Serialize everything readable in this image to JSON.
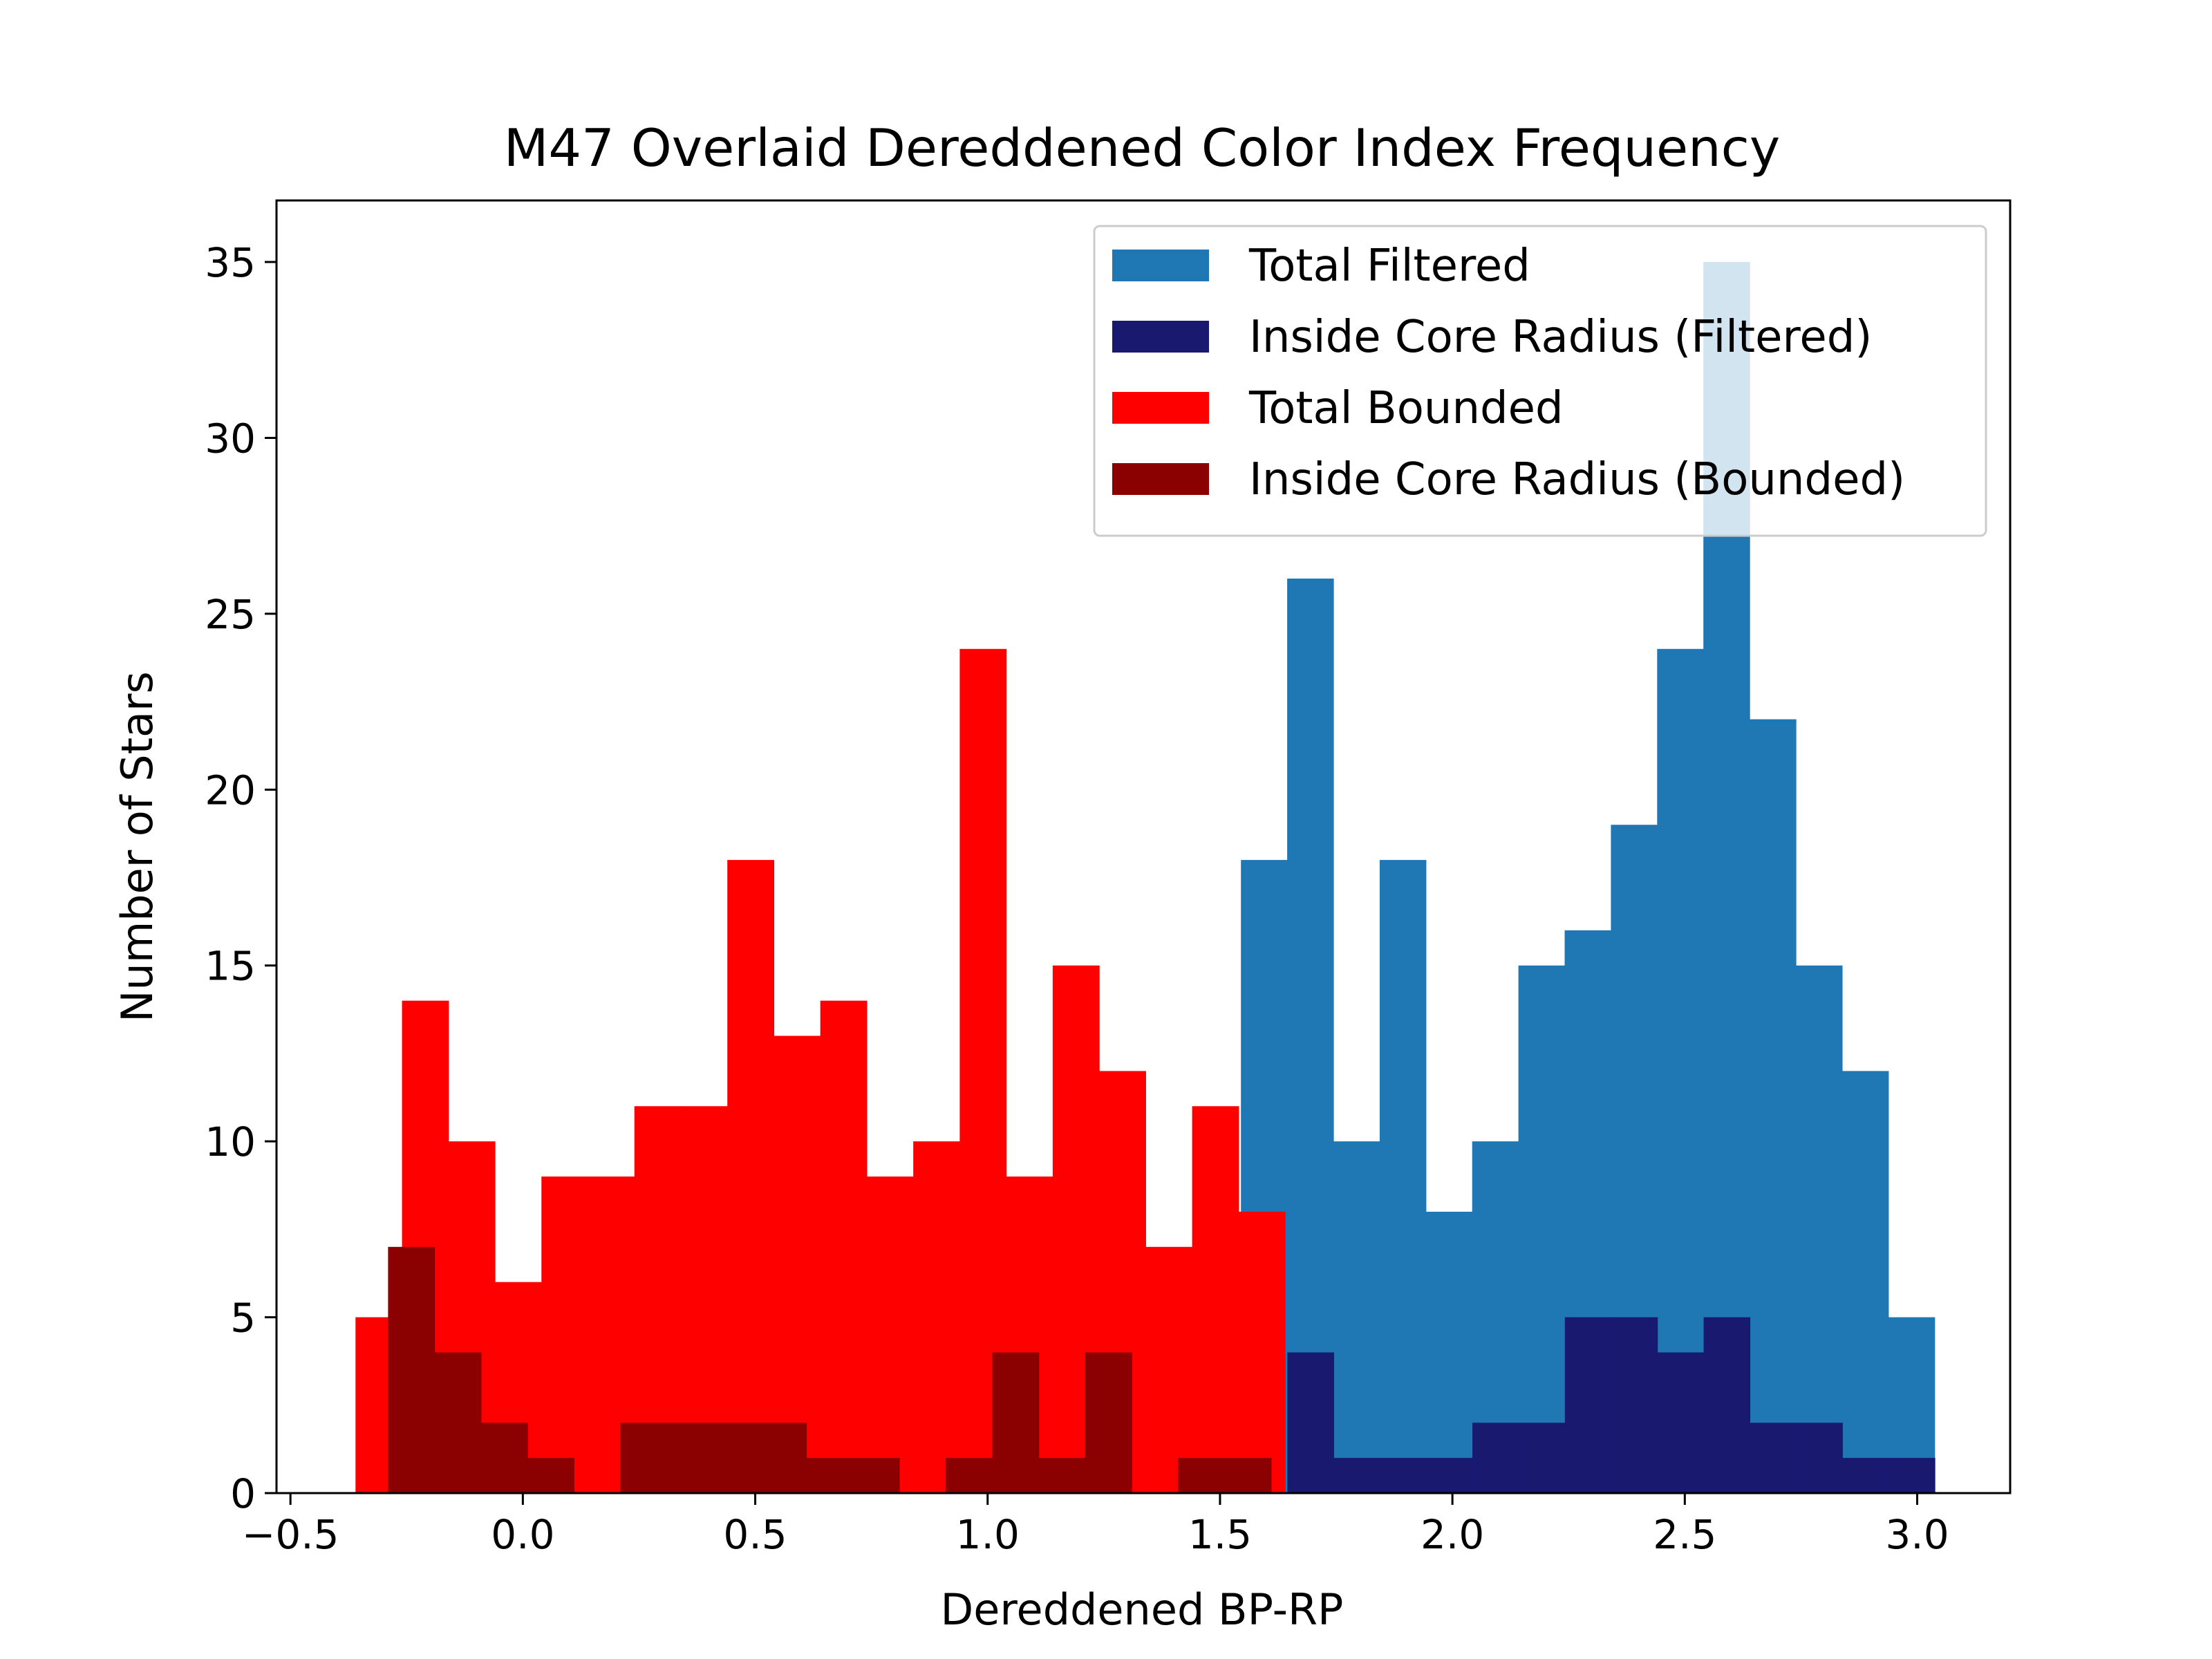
{
  "chart_data": {
    "type": "bar",
    "title": "M47 Overlaid Dereddened Color Index Frequency",
    "xlabel": "Dereddened BP-RP",
    "ylabel": "Number of Stars",
    "xlim": [
      -0.53,
      3.2
    ],
    "ylim": [
      0,
      36.75
    ],
    "xticks": [
      -0.5,
      0.0,
      0.5,
      1.0,
      1.5,
      2.0,
      2.5,
      3.0
    ],
    "xtick_labels": [
      "−0.5",
      "0.0",
      "0.5",
      "1.0",
      "1.5",
      "2.0",
      "2.5",
      "3.0"
    ],
    "yticks": [
      0,
      5,
      10,
      15,
      20,
      25,
      30,
      35
    ],
    "ytick_labels": [
      "0",
      "5",
      "10",
      "15",
      "20",
      "25",
      "30",
      "35"
    ],
    "grid": false,
    "legend_position": "top-right",
    "series": [
      {
        "name": "Total Filtered",
        "color": "#1f77b4",
        "bin_start": 1.545,
        "bin_width": 0.0995,
        "values": [
          18,
          26,
          10,
          18,
          8,
          10,
          15,
          16,
          19,
          24,
          35,
          22,
          15,
          12,
          5
        ]
      },
      {
        "name": "Inside Core Radius (Filtered)",
        "color": "#191970",
        "bin_start": 1.645,
        "bin_width": 0.0995,
        "values": [
          4,
          1,
          1,
          1,
          2,
          2,
          5,
          5,
          4,
          5,
          2,
          2,
          1,
          1
        ]
      },
      {
        "name": "Total Bounded",
        "color": "#ff0000",
        "bin_start": -0.36,
        "bin_width": 0.1,
        "values": [
          5,
          14,
          10,
          6,
          9,
          9,
          11,
          11,
          18,
          13,
          14,
          9,
          10,
          24,
          9,
          15,
          12,
          7,
          11,
          8
        ]
      },
      {
        "name": "Inside Core Radius (Bounded)",
        "color": "#8b0000",
        "bin_start": -0.29,
        "bin_width": 0.1,
        "values": [
          7,
          4,
          2,
          1,
          0,
          2,
          2,
          2,
          2,
          1,
          1,
          0,
          1,
          4,
          1,
          4,
          0,
          1,
          1
        ]
      }
    ]
  }
}
